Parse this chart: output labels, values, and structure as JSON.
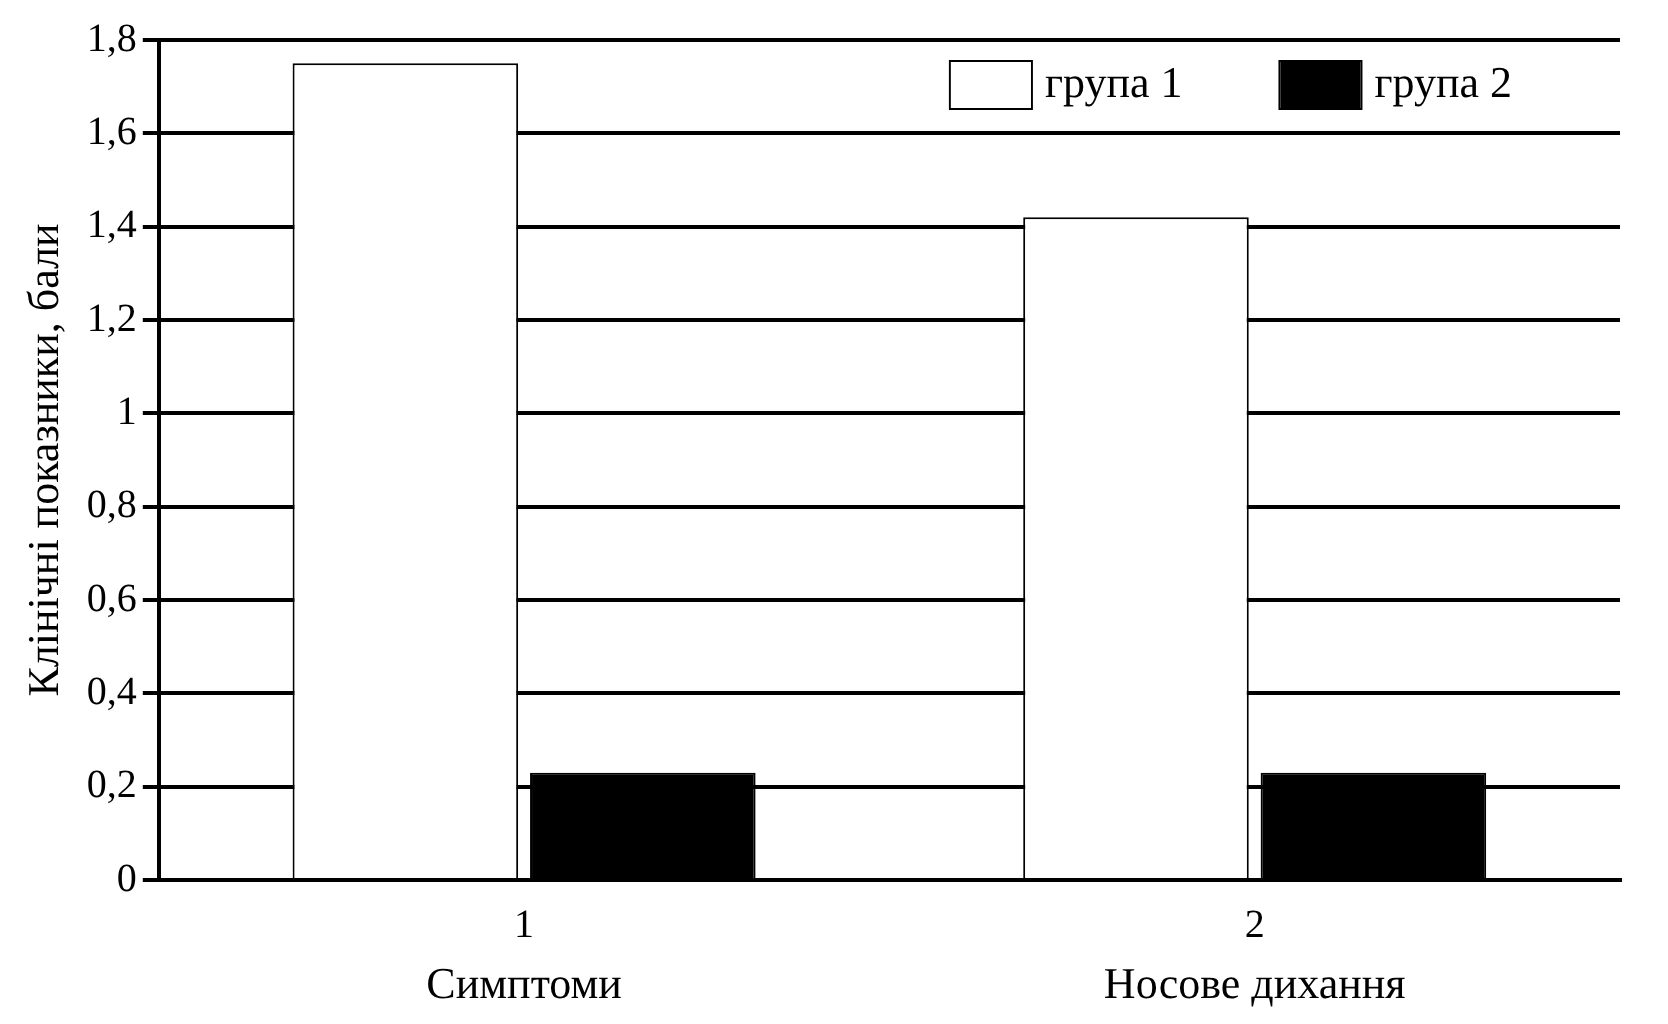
{
  "chart_data": {
    "type": "bar",
    "ylabel": "Клінічні показники, бали",
    "categories": [
      "1",
      "2"
    ],
    "series": [
      {
        "name": "група 1",
        "color": "#ffffff",
        "values": [
          1.75,
          1.42
        ]
      },
      {
        "name": "група 2",
        "color": "#000000",
        "values": [
          0.23,
          0.23
        ]
      }
    ],
    "ylim": [
      0,
      1.8
    ],
    "yticks": [
      0,
      {
        "value": 0.2,
        "label": "0,2"
      },
      {
        "value": 0.4,
        "label": "0,4"
      },
      {
        "value": 0.6,
        "label": "0,6"
      },
      {
        "value": 0.8,
        "label": "0,8"
      },
      1,
      {
        "value": 1.2,
        "label": "1,2"
      },
      {
        "value": 1.4,
        "label": "1,4"
      },
      {
        "value": 1.6,
        "label": "1,6"
      },
      {
        "value": 1.8,
        "label": "1,8"
      }
    ],
    "annotations": [
      "Симптоми",
      "Носове дихання"
    ],
    "grid": "y",
    "legend": "top right"
  }
}
